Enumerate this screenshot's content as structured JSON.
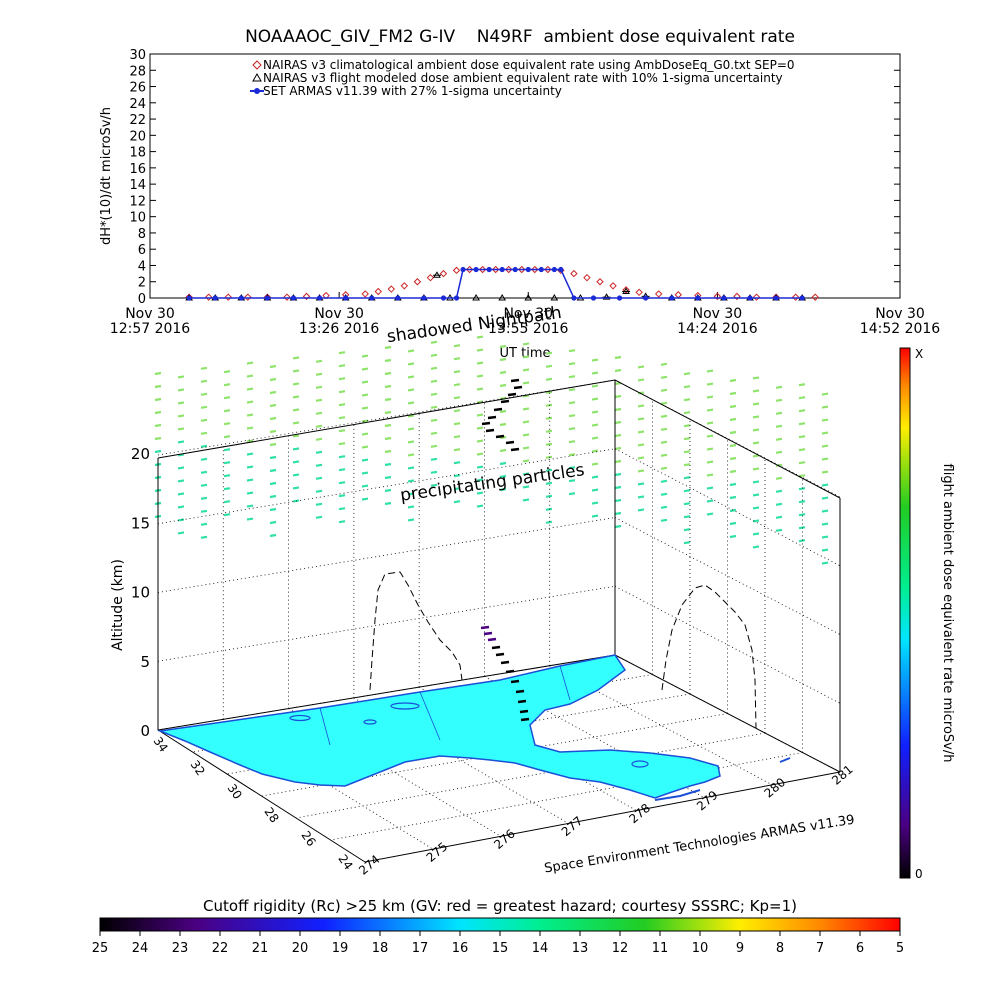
{
  "chart_data": [
    {
      "type": "line",
      "title": "NOAAAOC_GIV_FM2 G-IV    N49RF  ambient dose equivalent rate",
      "xlabel": "UT time",
      "ylabel": "dH*(10)/dt microSv/h",
      "ylim": [
        0,
        30
      ],
      "y_ticks": [
        0,
        2,
        4,
        6,
        8,
        10,
        12,
        14,
        16,
        18,
        20,
        22,
        24,
        26,
        28,
        30
      ],
      "x_range_minutes": [
        0,
        115
      ],
      "x_ticks": [
        {
          "minute": 0,
          "line1": "Nov 30",
          "line2": "12:57 2016"
        },
        {
          "minute": 29,
          "line1": "Nov 30",
          "line2": "13:26 2016"
        },
        {
          "minute": 58,
          "line1": "Nov 30",
          "line2": "13:55 2016"
        },
        {
          "minute": 87,
          "line1": "Nov 30",
          "line2": "14:24 2016"
        },
        {
          "minute": 115,
          "line1": "Nov 30",
          "line2": "14:52 2016"
        }
      ],
      "legend_position": "top",
      "series": [
        {
          "name": "NAIRAS v3 climatological ambient dose equivalent rate using AmbDoseEq_G0.txt SEP=0",
          "color": "#cc2222",
          "marker": "diamond",
          "points": [
            [
              6,
              0.1
            ],
            [
              9,
              0.1
            ],
            [
              12,
              0.1
            ],
            [
              15,
              0.1
            ],
            [
              18,
              0.1
            ],
            [
              21,
              0.1
            ],
            [
              24,
              0.2
            ],
            [
              27,
              0.3
            ],
            [
              30,
              0.4
            ],
            [
              33,
              0.5
            ],
            [
              35,
              0.8
            ],
            [
              37,
              1.1
            ],
            [
              39,
              1.5
            ],
            [
              41,
              2.0
            ],
            [
              43,
              2.5
            ],
            [
              45,
              3.0
            ],
            [
              47,
              3.4
            ],
            [
              49,
              3.5
            ],
            [
              51,
              3.5
            ],
            [
              53,
              3.5
            ],
            [
              55,
              3.5
            ],
            [
              57,
              3.5
            ],
            [
              59,
              3.5
            ],
            [
              61,
              3.5
            ],
            [
              63,
              3.4
            ],
            [
              65,
              3.0
            ],
            [
              67,
              2.5
            ],
            [
              69,
              2.0
            ],
            [
              71,
              1.5
            ],
            [
              73,
              1.0
            ],
            [
              75,
              0.7
            ],
            [
              78,
              0.5
            ],
            [
              81,
              0.4
            ],
            [
              84,
              0.3
            ],
            [
              87,
              0.2
            ],
            [
              90,
              0.2
            ],
            [
              93,
              0.1
            ],
            [
              96,
              0.1
            ],
            [
              99,
              0.1
            ],
            [
              102,
              0.1
            ]
          ]
        },
        {
          "name": "NAIRAS v3 flight modeled dose ambient equivalent rate with 10% 1-sigma uncertainty",
          "color": "#000000",
          "marker": "triangle",
          "points": [
            [
              6,
              0
            ],
            [
              10,
              0
            ],
            [
              14,
              0
            ],
            [
              18,
              0
            ],
            [
              22,
              0
            ],
            [
              26,
              0
            ],
            [
              30,
              0
            ],
            [
              34,
              0
            ],
            [
              38,
              0
            ],
            [
              42,
              0
            ],
            [
              44,
              2.8
            ],
            [
              46,
              0
            ],
            [
              50,
              0
            ],
            [
              54,
              0
            ],
            [
              58,
              0
            ],
            [
              62,
              0
            ],
            [
              66,
              0
            ],
            [
              70,
              0.1
            ],
            [
              73,
              0.8
            ],
            [
              76,
              0.2
            ],
            [
              80,
              0
            ],
            [
              84,
              0
            ],
            [
              88,
              0
            ],
            [
              92,
              0
            ],
            [
              96,
              0
            ],
            [
              100,
              0
            ]
          ]
        },
        {
          "name": "SET ARMAS v11.39 with 27% 1-sigma uncertainty",
          "color": "#1a2ad6",
          "marker": "filled-circle",
          "points": [
            [
              6,
              0
            ],
            [
              10,
              0
            ],
            [
              14,
              0
            ],
            [
              18,
              0
            ],
            [
              22,
              0
            ],
            [
              26,
              0
            ],
            [
              30,
              0
            ],
            [
              34,
              0
            ],
            [
              38,
              0
            ],
            [
              42,
              0
            ],
            [
              45,
              0
            ],
            [
              47,
              0
            ],
            [
              48,
              3.5
            ],
            [
              50,
              3.5
            ],
            [
              52,
              3.5
            ],
            [
              54,
              3.5
            ],
            [
              56,
              3.5
            ],
            [
              58,
              3.5
            ],
            [
              60,
              3.5
            ],
            [
              62,
              3.5
            ],
            [
              63,
              3.5
            ],
            [
              65,
              0
            ],
            [
              68,
              0
            ],
            [
              72,
              0
            ],
            [
              76,
              0
            ],
            [
              80,
              0
            ],
            [
              84,
              0
            ],
            [
              88,
              0
            ],
            [
              92,
              0
            ],
            [
              96,
              0
            ],
            [
              100,
              0
            ]
          ]
        }
      ]
    },
    {
      "type": "scatter",
      "title": "",
      "zlabel": "Altitude (km)",
      "z_ticks": [
        0,
        5,
        10,
        15,
        20
      ],
      "lat_ticks": [
        34,
        32,
        30,
        28,
        26,
        24
      ],
      "lon_ticks": [
        274,
        275,
        276,
        277,
        278,
        279,
        280,
        281
      ],
      "annotations": [
        "shadowed Nightpath",
        "precipitating particles",
        "Space Environment Technologies ARMAS v11.39"
      ],
      "colorbar": {
        "label": "flight ambient dose equivalent rate microSv/h",
        "top_label": "X",
        "bottom_label": "0"
      }
    },
    {
      "type": "heatmap",
      "title": "Cutoff rigidity (Rc) >25 km (GV: red = greatest hazard; courtesy SSSRC; Kp=1)",
      "tick_labels": [
        "25",
        "24",
        "23",
        "22",
        "21",
        "20",
        "19",
        "18",
        "17",
        "16",
        "15",
        "14",
        "13",
        "12",
        "11",
        "10",
        "9",
        "8",
        "7",
        "6",
        "5"
      ]
    }
  ],
  "colors": {
    "land": "#33ffff",
    "coast": "#1a4fd6",
    "particles_upper": "#8ee36a",
    "particles_lower": "#2fe0a8"
  }
}
